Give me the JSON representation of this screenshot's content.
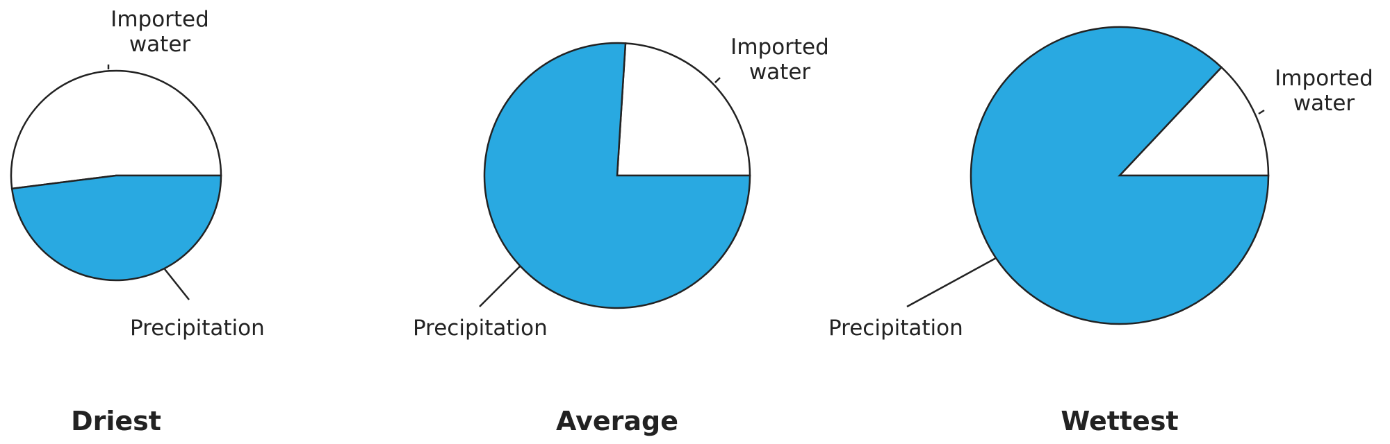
{
  "chart_data": [
    {
      "type": "pie",
      "title": "Driest",
      "categories": [
        "Imported water",
        "Precipitation"
      ],
      "values": [
        52,
        48
      ],
      "colors": [
        "#ffffff",
        "#29a9e1"
      ]
    },
    {
      "type": "pie",
      "title": "Average",
      "categories": [
        "Imported water",
        "Precipitation"
      ],
      "values": [
        24,
        76
      ],
      "colors": [
        "#ffffff",
        "#29a9e1"
      ]
    },
    {
      "type": "pie",
      "title": "Wettest",
      "categories": [
        "Imported water",
        "Precipitation"
      ],
      "values": [
        13,
        87
      ],
      "colors": [
        "#ffffff",
        "#29a9e1"
      ]
    }
  ]
}
